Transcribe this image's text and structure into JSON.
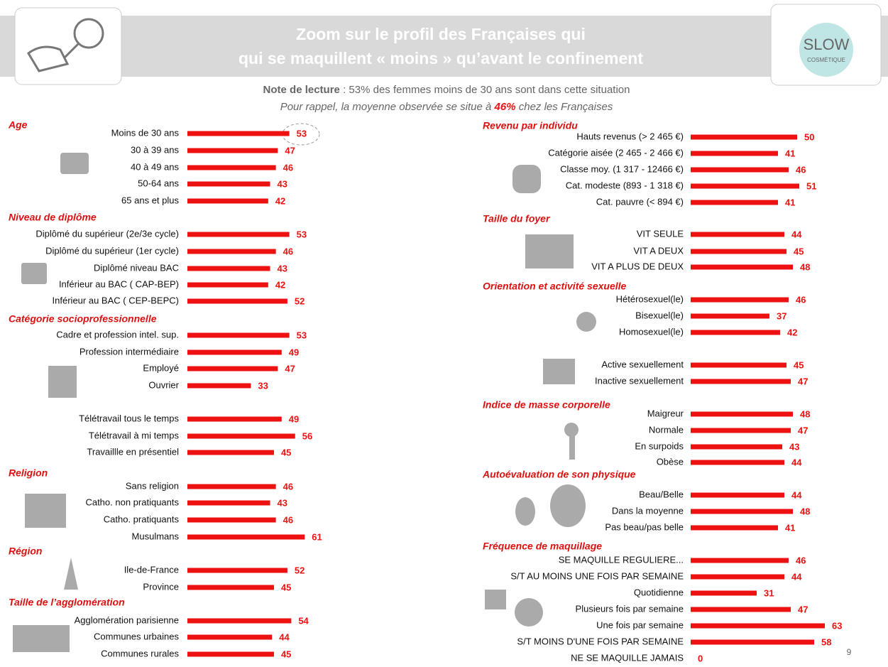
{
  "header": {
    "title": [
      "Zoom sur le profil des Françaises qui",
      "qui se maquillent « moins » qu’avant le confinement"
    ],
    "logo": "SLOW",
    "logo_sub": "COSMÉTIQUE"
  },
  "note": {
    "label": "Note de lecture",
    "text": " : 53% des femmes moins de 30 ans sont dans cette situation",
    "reminder_pre": "Pour rappel, la moyenne observée se situe à ",
    "reminder_value": "46%",
    "reminder_post": " chez les Françaises"
  },
  "page_number": "9",
  "chart_data": {
    "type": "bar",
    "color": "#ee1111",
    "panels": [
      {
        "groups": [
          {
            "title": "Age",
            "categories": [
              "Moins de 30 ans",
              "30 à 39 ans",
              "40 à 49 ans",
              "50-64 ans",
              "65 ans et plus"
            ],
            "values": [
              53,
              47,
              46,
              43,
              42
            ]
          },
          {
            "title": "Niveau de diplôme",
            "categories": [
              "Diplômé du supérieur (2e/3e cycle)",
              "Diplômé du supérieur (1er cycle)",
              "Diplômé niveau BAC",
              "Inférieur au BAC ( CAP-BEP)",
              "Inférieur au BAC ( CEP-BEPC)"
            ],
            "values": [
              53,
              46,
              43,
              42,
              52
            ]
          },
          {
            "title": "Catégorie socioprofessionnelle",
            "categories": [
              "Cadre et profession intel. sup.",
              "Profession intermédiaire",
              "Employé",
              "Ouvrier"
            ],
            "values": [
              53,
              49,
              47,
              33
            ]
          },
          {
            "categories": [
              "Télétravail tous le temps",
              "Télétravail à mi temps",
              "Travaillle en présentiel"
            ],
            "values": [
              49,
              56,
              45
            ]
          },
          {
            "title": "Religion",
            "categories": [
              "Sans religion",
              "Catho. non pratiquants",
              "Catho. pratiquants",
              "Musulmans"
            ],
            "values": [
              46,
              43,
              46,
              61
            ]
          },
          {
            "title": "Région",
            "categories": [
              "Ile-de-France",
              "Province"
            ],
            "values": [
              52,
              45
            ]
          },
          {
            "title": "Taille de l’agglomération",
            "categories": [
              "Agglomération parisienne",
              "Communes urbaines",
              "Communes rurales"
            ],
            "values": [
              54,
              44,
              45
            ]
          }
        ]
      },
      {
        "groups": [
          {
            "title": "Revenu par individu",
            "categories": [
              "Hauts revenus (> 2 465 €)",
              "Catégorie aisée (2 465 - 2 466 €)",
              "Classe moy. (1 317 - 12466 €)",
              "Cat. modeste (893 - 1 318 €)",
              "Cat. pauvre (< 894 €)"
            ],
            "values": [
              50,
              41,
              46,
              51,
              41
            ]
          },
          {
            "title": "Taille du foyer",
            "categories": [
              "VIT SEULE",
              "VIT A DEUX",
              "VIT A PLUS DE DEUX"
            ],
            "values": [
              44,
              45,
              48
            ]
          },
          {
            "title": "Orientation et activité sexuelle",
            "categories": [
              "Hétérosexuel(le)",
              "Bisexuel(le)",
              "Homosexuel(le)",
              "Active sexuellement",
              "Inactive sexuellement"
            ],
            "values": [
              46,
              37,
              42,
              45,
              47
            ]
          },
          {
            "title": "Indice de masse corporelle",
            "categories": [
              "Maigreur",
              "Normale",
              "En surpoids",
              "Obèse"
            ],
            "values": [
              48,
              47,
              43,
              44
            ]
          },
          {
            "title": "Autoévaluation de son physique",
            "categories": [
              "Beau/Belle",
              "Dans la moyenne",
              "Pas beau/pas belle"
            ],
            "values": [
              44,
              48,
              41
            ]
          },
          {
            "title": "Fréquence de maquillage",
            "categories": [
              "SE MAQUILLE REGULIERE...",
              "S/T AU MOINS UNE FOIS PAR SEMAINE",
              "Quotidienne",
              "Plusieurs fois par semaine",
              "Une fois par semaine",
              "S/T MOINS D'UNE FOIS PAR SEMAINE",
              "NE SE MAQUILLE JAMAIS"
            ],
            "values": [
              46,
              44,
              31,
              47,
              63,
              58,
              0
            ]
          }
        ]
      }
    ]
  }
}
